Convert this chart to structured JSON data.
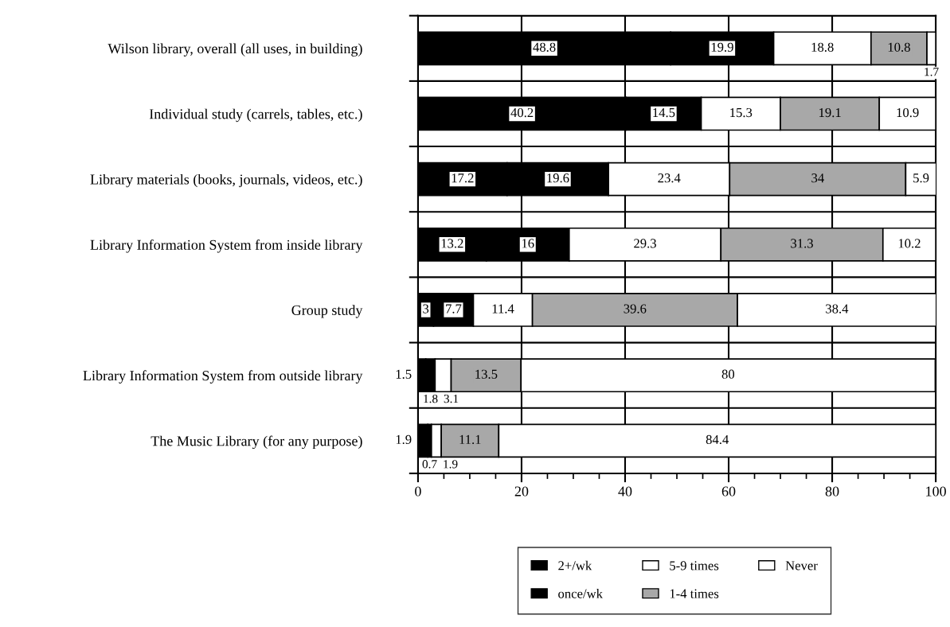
{
  "chart_data": {
    "type": "bar",
    "orientation": "horizontal",
    "stacked": true,
    "data_labels": true,
    "grid": "x",
    "legend": "bottom",
    "categories": [
      "Wilson library, overall (all uses, in building)",
      "Individual study (carrels, tables, etc.)",
      "Library materials (books, journals, videos, etc.)",
      "Library Information System from inside library",
      "Group study",
      "Library Information System from outside library",
      "The Music Library (for any purpose)"
    ],
    "series": [
      {
        "name": "2+/wk",
        "color": "#000000",
        "values": [
          48.8,
          40.2,
          17.2,
          13.2,
          3,
          1.5,
          1.9
        ]
      },
      {
        "name": "once/wk",
        "color": "#000000",
        "values": [
          19.9,
          14.5,
          19.6,
          16,
          7.7,
          1.8,
          0.7
        ]
      },
      {
        "name": "5-9 times",
        "color": "#ffffff",
        "values": [
          18.8,
          15.3,
          23.4,
          29.3,
          11.4,
          3.1,
          1.9
        ]
      },
      {
        "name": "1-4 times",
        "color": "#a8a8a8",
        "values": [
          10.8,
          19.1,
          34,
          31.3,
          39.6,
          13.5,
          11.1
        ]
      },
      {
        "name": "Never",
        "color": "#ffffff",
        "values": [
          1.7,
          10.9,
          5.9,
          10.2,
          38.4,
          80,
          84.4
        ]
      }
    ],
    "xlim": [
      0,
      100
    ],
    "xticks": [
      0,
      {
        "value": 5,
        "label": null
      },
      {
        "value": 10,
        "label": null
      },
      {
        "value": 15,
        "label": null
      },
      20,
      {
        "value": 25,
        "label": null
      },
      {
        "value": 30,
        "label": null
      },
      {
        "value": 35,
        "label": null
      },
      40,
      {
        "value": 45,
        "label": null
      },
      {
        "value": 50,
        "label": null
      },
      {
        "value": 55,
        "label": null
      },
      60,
      {
        "value": 65,
        "label": null
      },
      {
        "value": 70,
        "label": null
      },
      {
        "value": 75,
        "label": null
      },
      80,
      {
        "value": 85,
        "label": null
      },
      {
        "value": 90,
        "label": null
      },
      {
        "value": 95,
        "label": null
      },
      100
    ]
  }
}
